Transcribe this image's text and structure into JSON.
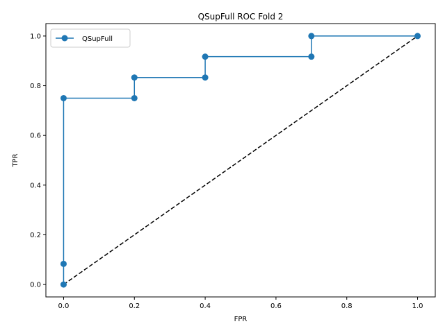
{
  "chart_data": {
    "type": "line",
    "title": "QSupFull ROC Fold 2",
    "xlabel": "FPR",
    "ylabel": "TPR",
    "xlim": [
      -0.05,
      1.05
    ],
    "ylim": [
      -0.05,
      1.05
    ],
    "xticks": [
      "0.0",
      "0.2",
      "0.4",
      "0.6",
      "0.8",
      "1.0"
    ],
    "yticks": [
      "0.0",
      "0.2",
      "0.4",
      "0.6",
      "0.8",
      "1.0"
    ],
    "grid": false,
    "legend_position": "top-left",
    "series": [
      {
        "name": "QSupFull",
        "color": "#1f77b4",
        "marker": "circle",
        "x": [
          0.0,
          0.0,
          0.0,
          0.2,
          0.2,
          0.4,
          0.4,
          0.7,
          0.7,
          1.0
        ],
        "y": [
          0.0,
          0.083,
          0.75,
          0.75,
          0.833,
          0.833,
          0.917,
          0.917,
          1.0,
          1.0
        ]
      }
    ],
    "reference_line": {
      "style": "dashed",
      "color": "#000000",
      "x": [
        0.0,
        1.0
      ],
      "y": [
        0.0,
        1.0
      ]
    }
  }
}
